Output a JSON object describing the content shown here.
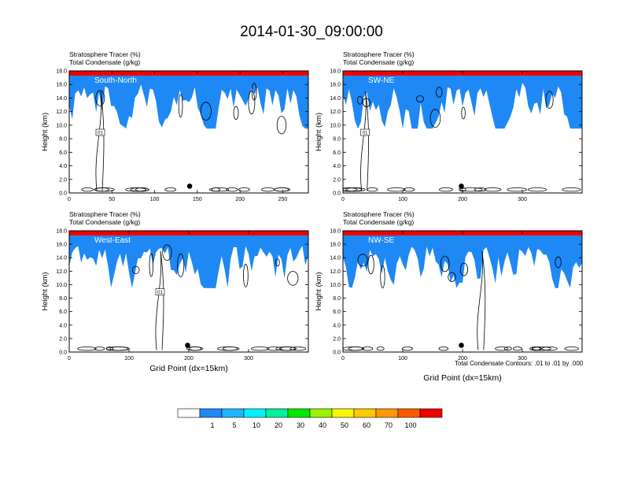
{
  "title": "2014-01-30_09:00:00",
  "colorbar": {
    "colors": [
      "#ffffff",
      "#1e88f5",
      "#1fb4ff",
      "#00f0ff",
      "#00f09c",
      "#00e800",
      "#9ef000",
      "#f5f500",
      "#ffc800",
      "#ff9600",
      "#ff5a00",
      "#f00000"
    ],
    "labels": [
      "1",
      "5",
      "10",
      "20",
      "30",
      "40",
      "50",
      "60",
      "70",
      "100"
    ]
  },
  "footnote": "Total Condensate Contours: .01 to .01 by .000",
  "chart_data": [
    {
      "type": "heatmap",
      "panel": "top-left",
      "subtitle1": "Stratosphere Tracer   (%)",
      "subtitle2": "Total Condensate   (g/kg)",
      "label": "South-North",
      "ylabel": "Height (km)",
      "xlabel": "",
      "xlim": [
        0,
        280
      ],
      "ylim": [
        0,
        18
      ],
      "xticks": [
        0,
        50,
        100,
        150,
        200,
        250
      ],
      "yticks": [
        0.0,
        2.0,
        4.0,
        6.0,
        8.0,
        10.0,
        12.0,
        14.0,
        16.0,
        18.0
      ],
      "marker_x": 141,
      "marker_y": 1.0,
      "contour_label": "01"
    },
    {
      "type": "heatmap",
      "panel": "top-right",
      "subtitle1": "Stratosphere Tracer   (%)",
      "subtitle2": "Total Condensate   (g/kg)",
      "label": "SW-NE",
      "ylabel": "Height (km)",
      "xlabel": "",
      "xlim": [
        0,
        400
      ],
      "ylim": [
        0,
        18
      ],
      "xticks": [
        0,
        100,
        200,
        300
      ],
      "yticks": [
        0.0,
        2.0,
        4.0,
        6.0,
        8.0,
        10.0,
        12.0,
        14.0,
        16.0,
        18.0
      ],
      "marker_x": 198,
      "marker_y": 1.0,
      "contour_label": "01"
    },
    {
      "type": "heatmap",
      "panel": "bottom-left",
      "subtitle1": "Stratosphere Tracer   (%)",
      "subtitle2": "Total Condensate   (g/kg)",
      "label": "West-East",
      "ylabel": "Height (km)",
      "xlabel": "Grid Point (dx=15km)",
      "xlim": [
        0,
        400
      ],
      "ylim": [
        0,
        18
      ],
      "xticks": [
        0,
        100,
        200,
        300
      ],
      "yticks": [
        0.0,
        2.0,
        4.0,
        6.0,
        8.0,
        10.0,
        12.0,
        14.0,
        16.0,
        18.0
      ],
      "marker_x": 198,
      "marker_y": 1.0,
      "contour_label": "01"
    },
    {
      "type": "heatmap",
      "panel": "bottom-right",
      "subtitle1": "Stratosphere Tracer   (%)",
      "subtitle2": "Total Condensate   (g/kg)",
      "label": "NW-SE",
      "ylabel": "Height (km)",
      "xlabel": "Grid Point (dx=15km)",
      "xlim": [
        0,
        400
      ],
      "ylim": [
        0,
        18
      ],
      "xticks": [
        0,
        100,
        200,
        300
      ],
      "yticks": [
        0.0,
        2.0,
        4.0,
        6.0,
        8.0,
        10.0,
        12.0,
        14.0,
        16.0,
        18.0
      ],
      "marker_x": 198,
      "marker_y": 1.0,
      "contour_label": ""
    }
  ]
}
